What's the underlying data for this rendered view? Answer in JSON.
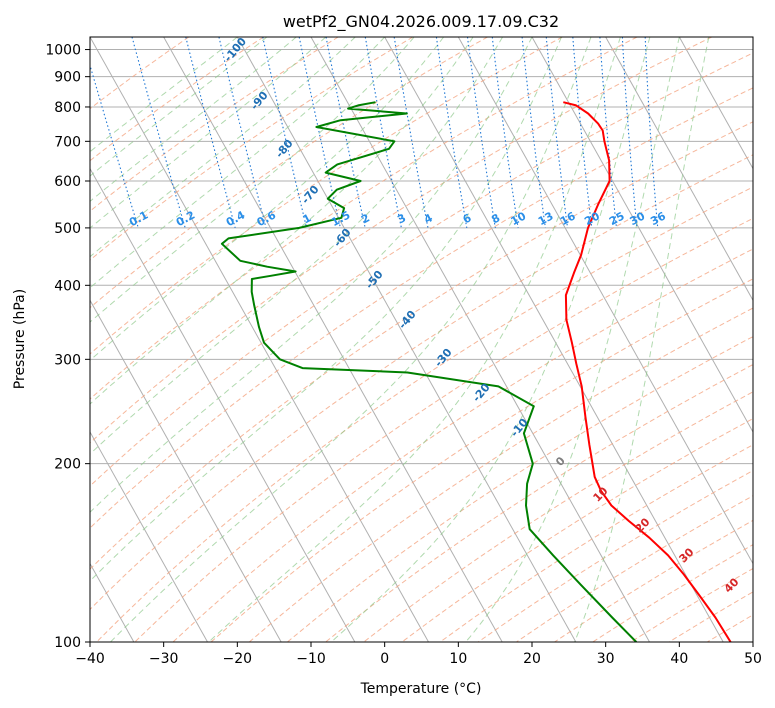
{
  "chart_data": {
    "type": "line",
    "title": "wetPf2_GN04.2026.009.17.09.C32",
    "xlabel": "Temperature (°C)",
    "ylabel": "Pressure (hPa)",
    "xlim": [
      -40,
      50
    ],
    "ylim": [
      1050,
      100
    ],
    "x_ticks": [
      -40,
      -30,
      -20,
      -10,
      0,
      10,
      20,
      30,
      40,
      50
    ],
    "x_tick_labels": [
      "−40",
      "−30",
      "−20",
      "−10",
      "0",
      "10",
      "20",
      "30",
      "40",
      "50"
    ],
    "y_ticks": [
      100,
      200,
      300,
      400,
      500,
      600,
      700,
      800,
      900,
      1000
    ],
    "y_tick_labels": [
      "100",
      "200",
      "300",
      "400",
      "500",
      "600",
      "700",
      "800",
      "900",
      "1000"
    ],
    "skew_c_per_log_decade": 45,
    "series": [
      {
        "name": "temperature",
        "color": "#ff0000",
        "points": [
          [
            19.3,
            815
          ],
          [
            20.8,
            805
          ],
          [
            21.8,
            780
          ],
          [
            22.4,
            750
          ],
          [
            22.5,
            730
          ],
          [
            21.9,
            700
          ],
          [
            21.1,
            650
          ],
          [
            19.6,
            600
          ],
          [
            16.4,
            550
          ],
          [
            13.1,
            500
          ],
          [
            10.1,
            450
          ],
          [
            7.8,
            420
          ],
          [
            5.0,
            385
          ],
          [
            3.2,
            350
          ],
          [
            2.2,
            320
          ],
          [
            1.2,
            295
          ],
          [
            0.2,
            270
          ],
          [
            -1.6,
            240
          ],
          [
            -3.2,
            215
          ],
          [
            -4.2,
            200
          ],
          [
            -4.9,
            190
          ],
          [
            -5.1,
            180
          ],
          [
            -4.8,
            170
          ],
          [
            -3.6,
            160
          ],
          [
            -2.1,
            150
          ],
          [
            -0.9,
            140
          ],
          [
            -0.2,
            130
          ],
          [
            0.3,
            120
          ],
          [
            0.8,
            110
          ],
          [
            1.0,
            100
          ]
        ]
      },
      {
        "name": "dewpoint",
        "color": "#008000",
        "points": [
          [
            -6.2,
            815
          ],
          [
            -8.8,
            805
          ],
          [
            -10.4,
            795
          ],
          [
            -2.8,
            780
          ],
          [
            -12.3,
            760
          ],
          [
            -16.1,
            740
          ],
          [
            -6.6,
            700
          ],
          [
            -7.9,
            680
          ],
          [
            -16.1,
            640
          ],
          [
            -18.3,
            620
          ],
          [
            -14.2,
            600
          ],
          [
            -18.1,
            580
          ],
          [
            -20.0,
            560
          ],
          [
            -18.5,
            540
          ],
          [
            -19.6,
            520
          ],
          [
            -26.1,
            500
          ],
          [
            -36.5,
            480
          ],
          [
            -37.8,
            470
          ],
          [
            -36.6,
            440
          ],
          [
            -33.4,
            430
          ],
          [
            -29.9,
            422
          ],
          [
            -33.6,
            415
          ],
          [
            -36.4,
            410
          ],
          [
            -37.4,
            390
          ],
          [
            -38.1,
            370
          ],
          [
            -39.1,
            340
          ],
          [
            -39.6,
            320
          ],
          [
            -38.7,
            300
          ],
          [
            -36.3,
            290
          ],
          [
            -22.4,
            285
          ],
          [
            -11.1,
            270
          ],
          [
            -7.8,
            250
          ],
          [
            -11.2,
            225
          ],
          [
            -12.3,
            200
          ],
          [
            -14.6,
            185
          ],
          [
            -16.4,
            170
          ],
          [
            -17.7,
            155
          ],
          [
            -16.5,
            140
          ],
          [
            -15.0,
            125
          ],
          [
            -13.2,
            110
          ],
          [
            -11.8,
            100
          ]
        ]
      }
    ],
    "mixing_ratio_labels": [
      "0.1",
      "0.2",
      "0.4",
      "0.6",
      "1",
      "1.5",
      "2",
      "3",
      "4",
      "6",
      "8",
      "10",
      "13",
      "16",
      "20",
      "25",
      "30",
      "36"
    ],
    "dry_adiabat_labels": [
      "-100",
      "-90",
      "-80",
      "-70",
      "-60",
      "-50",
      "-40",
      "-30",
      "-20",
      "-10"
    ],
    "moist_adiabat_labels": [
      "0",
      "10",
      "20",
      "30",
      "40"
    ]
  }
}
